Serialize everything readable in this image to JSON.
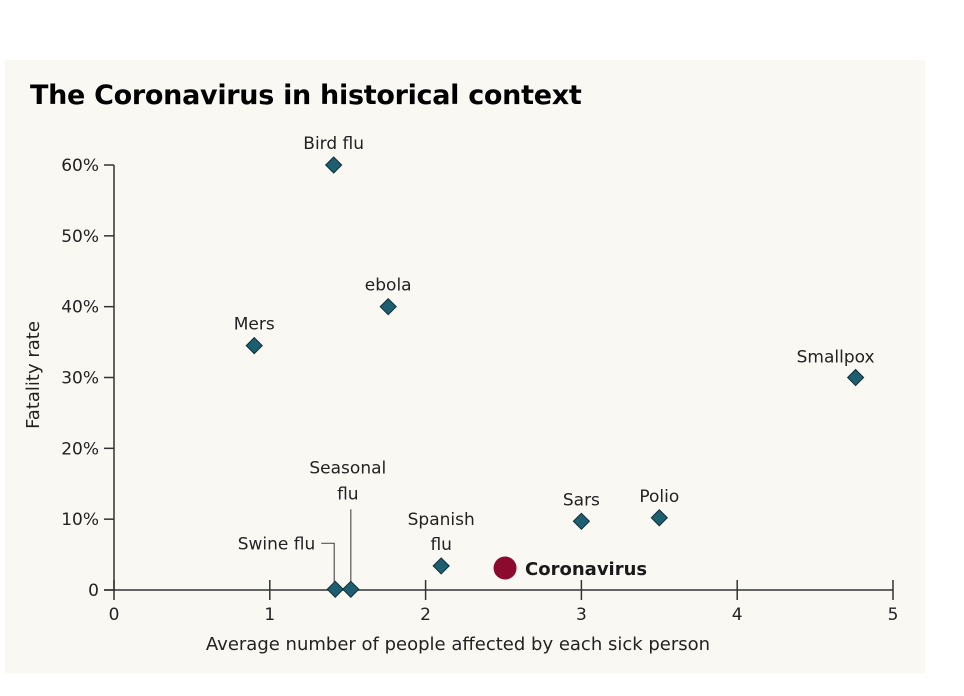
{
  "chart_data": {
    "type": "scatter",
    "title": "The Coronavirus in historical context",
    "xlabel": "Average number of people affected by each sick person",
    "ylabel": "Fatality rate",
    "xlim": [
      0,
      5
    ],
    "ylim": [
      0,
      60
    ],
    "x_ticks": [
      0,
      1,
      2,
      3,
      4,
      5
    ],
    "x_tick_labels": [
      "0",
      "1",
      "2",
      "3",
      "4",
      "5"
    ],
    "y_ticks": [
      0,
      10,
      20,
      30,
      40,
      50,
      60
    ],
    "y_tick_labels": [
      "0",
      "10%",
      "20%",
      "30%",
      "40%",
      "50%",
      "60%"
    ],
    "grid": false,
    "colors": {
      "point": "#1d5e70",
      "point_outline": "#0e2f38",
      "highlight": "#8b0a2e",
      "axis": "#333333"
    },
    "points": [
      {
        "name": "Bird flu",
        "label_lines": [
          "Bird flu"
        ],
        "x": 1.41,
        "y": 60,
        "label_pos": "above"
      },
      {
        "name": "ebola",
        "label_lines": [
          "ebola"
        ],
        "x": 1.76,
        "y": 40,
        "label_pos": "above"
      },
      {
        "name": "Mers",
        "label_lines": [
          "Mers"
        ],
        "x": 0.9,
        "y": 34.5,
        "label_pos": "above"
      },
      {
        "name": "Smallpox",
        "label_lines": [
          "Smallpox"
        ],
        "x": 4.76,
        "y": 30,
        "label_pos": "above-left"
      },
      {
        "name": "Sars",
        "label_lines": [
          "Sars"
        ],
        "x": 3.0,
        "y": 9.7,
        "label_pos": "above"
      },
      {
        "name": "Polio",
        "label_lines": [
          "Polio"
        ],
        "x": 3.5,
        "y": 10.2,
        "label_pos": "above"
      },
      {
        "name": "Spanish flu",
        "label_lines": [
          "Spanish",
          "flu"
        ],
        "x": 2.1,
        "y": 3.4,
        "label_pos": "above"
      },
      {
        "name": "Swine flu",
        "label_lines": [
          "Swine flu"
        ],
        "x": 1.42,
        "y": 0.1,
        "label_pos": "leader-left"
      },
      {
        "name": "Seasonal flu",
        "label_lines": [
          "Seasonal",
          "flu"
        ],
        "x": 1.52,
        "y": 0.1,
        "label_pos": "leader-up"
      }
    ],
    "highlight": {
      "name": "Coronavirus",
      "label": "Coronavirus",
      "x": 2.51,
      "y": 3.1,
      "label_pos": "right"
    }
  }
}
